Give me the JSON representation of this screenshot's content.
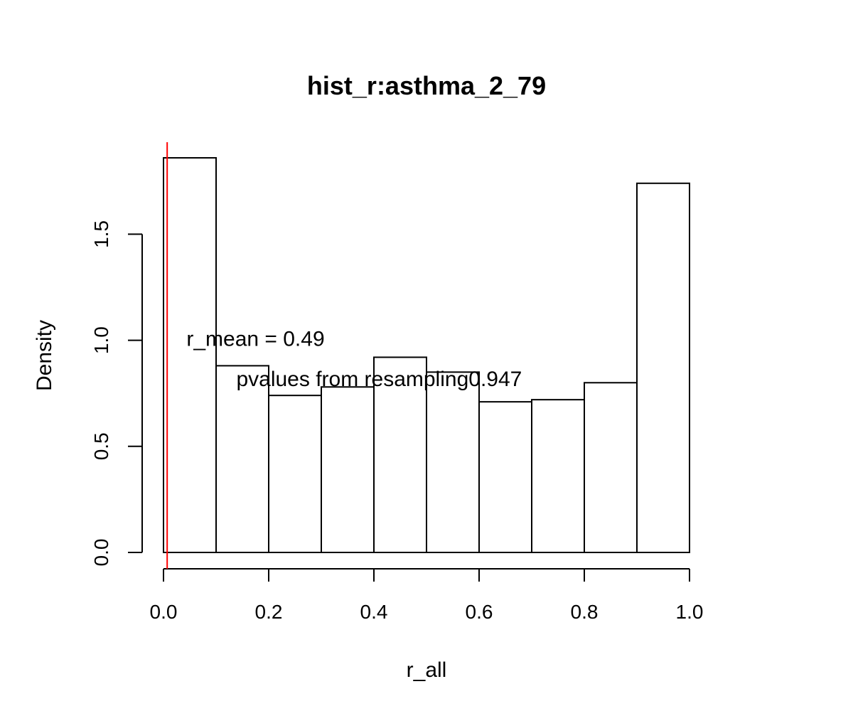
{
  "chart_data": {
    "type": "bar",
    "title": "hist_r:asthma_2_79",
    "xlabel": "r_all",
    "ylabel": "Density",
    "bins": [
      {
        "x0": 0.0,
        "x1": 0.1,
        "density": 1.86
      },
      {
        "x0": 0.1,
        "x1": 0.2,
        "density": 0.88
      },
      {
        "x0": 0.2,
        "x1": 0.3,
        "density": 0.74
      },
      {
        "x0": 0.3,
        "x1": 0.4,
        "density": 0.78
      },
      {
        "x0": 0.4,
        "x1": 0.5,
        "density": 0.92
      },
      {
        "x0": 0.5,
        "x1": 0.6,
        "density": 0.85
      },
      {
        "x0": 0.6,
        "x1": 0.7,
        "density": 0.71
      },
      {
        "x0": 0.7,
        "x1": 0.8,
        "density": 0.72
      },
      {
        "x0": 0.8,
        "x1": 0.9,
        "density": 0.8
      },
      {
        "x0": 0.9,
        "x1": 1.0,
        "density": 1.74
      }
    ],
    "xlim": [
      0.0,
      1.0
    ],
    "ylim": [
      0.0,
      1.86
    ],
    "xticks": [
      0.0,
      0.2,
      0.4,
      0.6,
      0.8,
      1.0
    ],
    "xtick_labels": [
      "0.0",
      "0.2",
      "0.4",
      "0.6",
      "0.8",
      "1.0"
    ],
    "yticks": [
      0.0,
      0.5,
      1.0,
      1.5
    ],
    "ytick_labels": [
      "0.0",
      "0.5",
      "1.0",
      "1.5"
    ],
    "reference_line": {
      "x": 0.007,
      "color": "#ff0000"
    },
    "annotations": [
      {
        "text": "r_mean = 0.49",
        "x": 0.175,
        "y": 1.0
      },
      {
        "text": "pvalues from resampling0.947",
        "x": 0.41,
        "y": 0.81
      }
    ],
    "grid": false,
    "legend": "none"
  }
}
